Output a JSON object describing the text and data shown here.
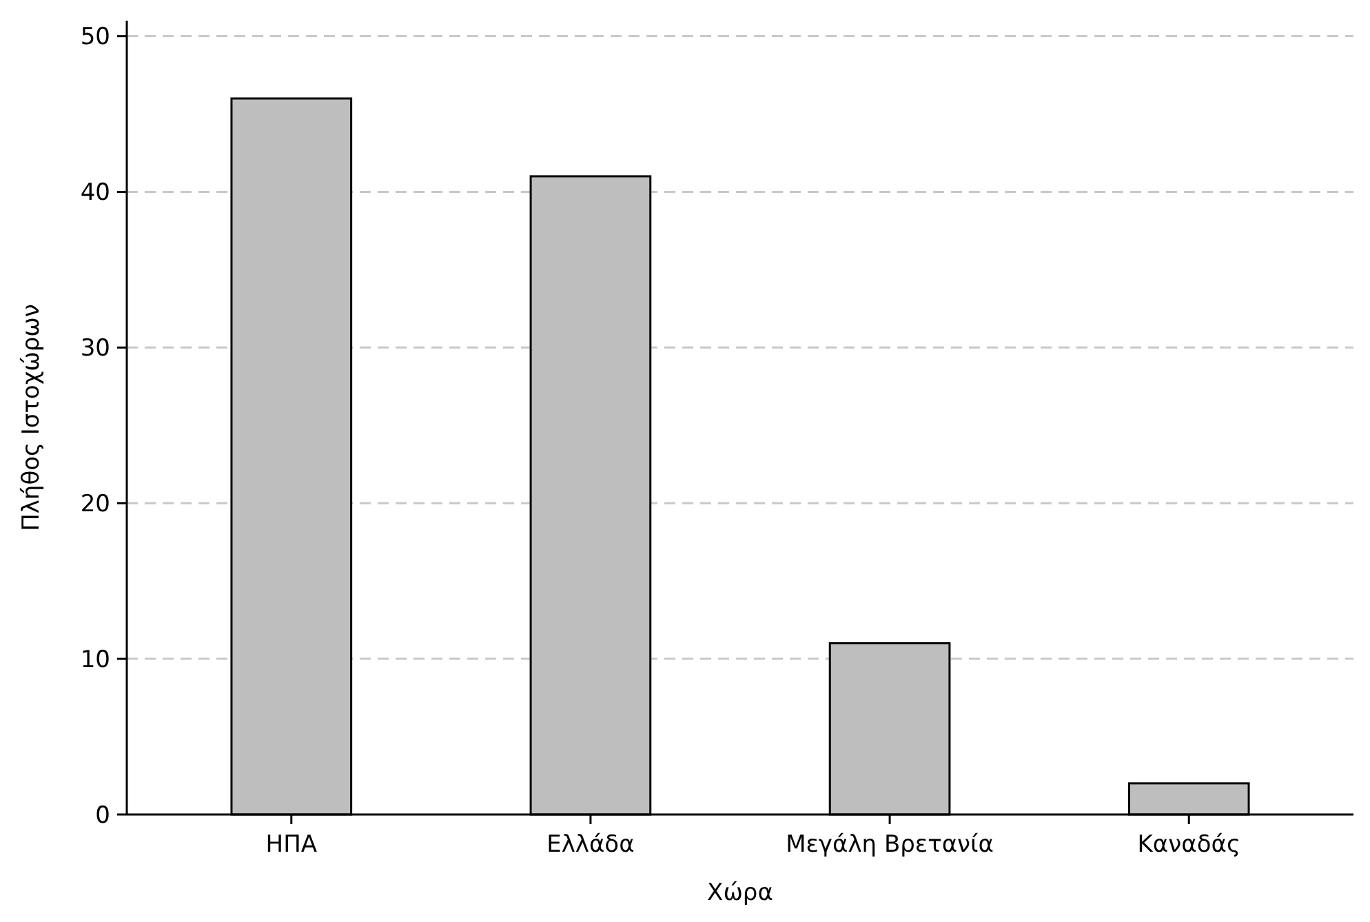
{
  "chart_data": {
    "type": "bar",
    "xlabel": "Χώρα",
    "ylabel": "Πλήθος Ιστοχώρων",
    "categories": [
      "ΗΠΑ",
      "Ελλάδα",
      "Μεγάλη Βρετανία",
      "Καναδάς"
    ],
    "values": [
      46,
      41,
      11,
      2
    ],
    "color": "#bebebe",
    "ylim": [
      0,
      51
    ],
    "yticks": [
      0,
      10,
      20,
      30,
      40,
      50
    ],
    "grid": "y"
  }
}
